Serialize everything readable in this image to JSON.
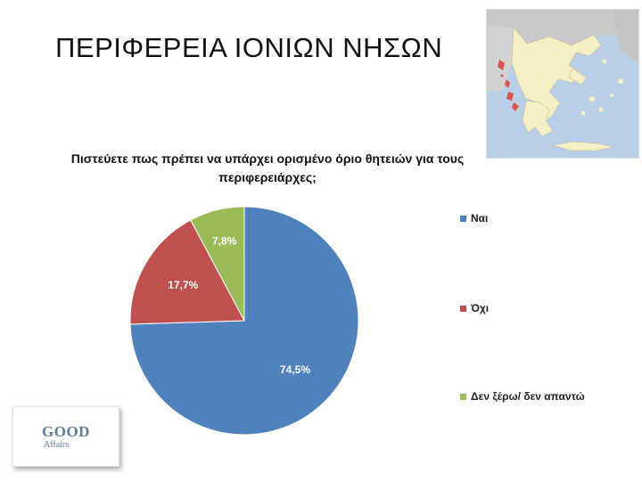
{
  "slide": {
    "title": "ΠΕΡΙΦΕΡΕΙΑ ΙΟΝΙΩΝ ΝΗΣΩΝ"
  },
  "logo": {
    "main": "GOOD",
    "sub": "Affairs"
  },
  "chart_data": {
    "type": "pie",
    "title": "Πιστεύετε πως πρέπει να υπάρχει ορισμένο όριο θητειών για τους περιφερειάρχες;",
    "slices": [
      {
        "label": "Ναι",
        "value": 74.5,
        "display": "74,5%",
        "color": "#4f81bd"
      },
      {
        "label": "Όχι",
        "value": 17.7,
        "display": "17,7%",
        "color": "#c0504d"
      },
      {
        "label": "Δεν ξέρω/ δεν απαντώ",
        "value": 7.8,
        "display": "7,8%",
        "color": "#9bbb59"
      }
    ],
    "start_angle_deg": 0,
    "direction": "clockwise",
    "legend_position": "right"
  },
  "map": {
    "icon": "map-of-greece-ionian-islands-highlighted",
    "sea_color": "#b9cfe8",
    "land_color": "#f4efc4",
    "neighbor_color": "#c9c9c9",
    "highlight_color": "#d9534f"
  }
}
